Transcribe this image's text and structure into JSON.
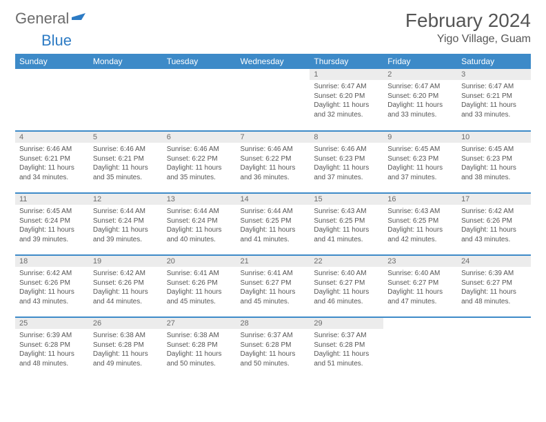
{
  "logo": {
    "part1": "General",
    "part2": "Blue"
  },
  "title": "February 2024",
  "location": "Yigo Village, Guam",
  "colors": {
    "brand": "#3d8ac8",
    "daynum_bg": "#ececec",
    "text": "#555555"
  },
  "weekday_headers": [
    "Sunday",
    "Monday",
    "Tuesday",
    "Wednesday",
    "Thursday",
    "Friday",
    "Saturday"
  ],
  "weeks": [
    [
      {
        "day": "",
        "lines": []
      },
      {
        "day": "",
        "lines": []
      },
      {
        "day": "",
        "lines": []
      },
      {
        "day": "",
        "lines": []
      },
      {
        "day": "1",
        "lines": [
          "Sunrise: 6:47 AM",
          "Sunset: 6:20 PM",
          "Daylight: 11 hours",
          "and 32 minutes."
        ]
      },
      {
        "day": "2",
        "lines": [
          "Sunrise: 6:47 AM",
          "Sunset: 6:20 PM",
          "Daylight: 11 hours",
          "and 33 minutes."
        ]
      },
      {
        "day": "3",
        "lines": [
          "Sunrise: 6:47 AM",
          "Sunset: 6:21 PM",
          "Daylight: 11 hours",
          "and 33 minutes."
        ]
      }
    ],
    [
      {
        "day": "4",
        "lines": [
          "Sunrise: 6:46 AM",
          "Sunset: 6:21 PM",
          "Daylight: 11 hours",
          "and 34 minutes."
        ]
      },
      {
        "day": "5",
        "lines": [
          "Sunrise: 6:46 AM",
          "Sunset: 6:21 PM",
          "Daylight: 11 hours",
          "and 35 minutes."
        ]
      },
      {
        "day": "6",
        "lines": [
          "Sunrise: 6:46 AM",
          "Sunset: 6:22 PM",
          "Daylight: 11 hours",
          "and 35 minutes."
        ]
      },
      {
        "day": "7",
        "lines": [
          "Sunrise: 6:46 AM",
          "Sunset: 6:22 PM",
          "Daylight: 11 hours",
          "and 36 minutes."
        ]
      },
      {
        "day": "8",
        "lines": [
          "Sunrise: 6:46 AM",
          "Sunset: 6:23 PM",
          "Daylight: 11 hours",
          "and 37 minutes."
        ]
      },
      {
        "day": "9",
        "lines": [
          "Sunrise: 6:45 AM",
          "Sunset: 6:23 PM",
          "Daylight: 11 hours",
          "and 37 minutes."
        ]
      },
      {
        "day": "10",
        "lines": [
          "Sunrise: 6:45 AM",
          "Sunset: 6:23 PM",
          "Daylight: 11 hours",
          "and 38 minutes."
        ]
      }
    ],
    [
      {
        "day": "11",
        "lines": [
          "Sunrise: 6:45 AM",
          "Sunset: 6:24 PM",
          "Daylight: 11 hours",
          "and 39 minutes."
        ]
      },
      {
        "day": "12",
        "lines": [
          "Sunrise: 6:44 AM",
          "Sunset: 6:24 PM",
          "Daylight: 11 hours",
          "and 39 minutes."
        ]
      },
      {
        "day": "13",
        "lines": [
          "Sunrise: 6:44 AM",
          "Sunset: 6:24 PM",
          "Daylight: 11 hours",
          "and 40 minutes."
        ]
      },
      {
        "day": "14",
        "lines": [
          "Sunrise: 6:44 AM",
          "Sunset: 6:25 PM",
          "Daylight: 11 hours",
          "and 41 minutes."
        ]
      },
      {
        "day": "15",
        "lines": [
          "Sunrise: 6:43 AM",
          "Sunset: 6:25 PM",
          "Daylight: 11 hours",
          "and 41 minutes."
        ]
      },
      {
        "day": "16",
        "lines": [
          "Sunrise: 6:43 AM",
          "Sunset: 6:25 PM",
          "Daylight: 11 hours",
          "and 42 minutes."
        ]
      },
      {
        "day": "17",
        "lines": [
          "Sunrise: 6:42 AM",
          "Sunset: 6:26 PM",
          "Daylight: 11 hours",
          "and 43 minutes."
        ]
      }
    ],
    [
      {
        "day": "18",
        "lines": [
          "Sunrise: 6:42 AM",
          "Sunset: 6:26 PM",
          "Daylight: 11 hours",
          "and 43 minutes."
        ]
      },
      {
        "day": "19",
        "lines": [
          "Sunrise: 6:42 AM",
          "Sunset: 6:26 PM",
          "Daylight: 11 hours",
          "and 44 minutes."
        ]
      },
      {
        "day": "20",
        "lines": [
          "Sunrise: 6:41 AM",
          "Sunset: 6:26 PM",
          "Daylight: 11 hours",
          "and 45 minutes."
        ]
      },
      {
        "day": "21",
        "lines": [
          "Sunrise: 6:41 AM",
          "Sunset: 6:27 PM",
          "Daylight: 11 hours",
          "and 45 minutes."
        ]
      },
      {
        "day": "22",
        "lines": [
          "Sunrise: 6:40 AM",
          "Sunset: 6:27 PM",
          "Daylight: 11 hours",
          "and 46 minutes."
        ]
      },
      {
        "day": "23",
        "lines": [
          "Sunrise: 6:40 AM",
          "Sunset: 6:27 PM",
          "Daylight: 11 hours",
          "and 47 minutes."
        ]
      },
      {
        "day": "24",
        "lines": [
          "Sunrise: 6:39 AM",
          "Sunset: 6:27 PM",
          "Daylight: 11 hours",
          "and 48 minutes."
        ]
      }
    ],
    [
      {
        "day": "25",
        "lines": [
          "Sunrise: 6:39 AM",
          "Sunset: 6:28 PM",
          "Daylight: 11 hours",
          "and 48 minutes."
        ]
      },
      {
        "day": "26",
        "lines": [
          "Sunrise: 6:38 AM",
          "Sunset: 6:28 PM",
          "Daylight: 11 hours",
          "and 49 minutes."
        ]
      },
      {
        "day": "27",
        "lines": [
          "Sunrise: 6:38 AM",
          "Sunset: 6:28 PM",
          "Daylight: 11 hours",
          "and 50 minutes."
        ]
      },
      {
        "day": "28",
        "lines": [
          "Sunrise: 6:37 AM",
          "Sunset: 6:28 PM",
          "Daylight: 11 hours",
          "and 50 minutes."
        ]
      },
      {
        "day": "29",
        "lines": [
          "Sunrise: 6:37 AM",
          "Sunset: 6:28 PM",
          "Daylight: 11 hours",
          "and 51 minutes."
        ]
      },
      {
        "day": "",
        "lines": []
      },
      {
        "day": "",
        "lines": []
      }
    ]
  ]
}
